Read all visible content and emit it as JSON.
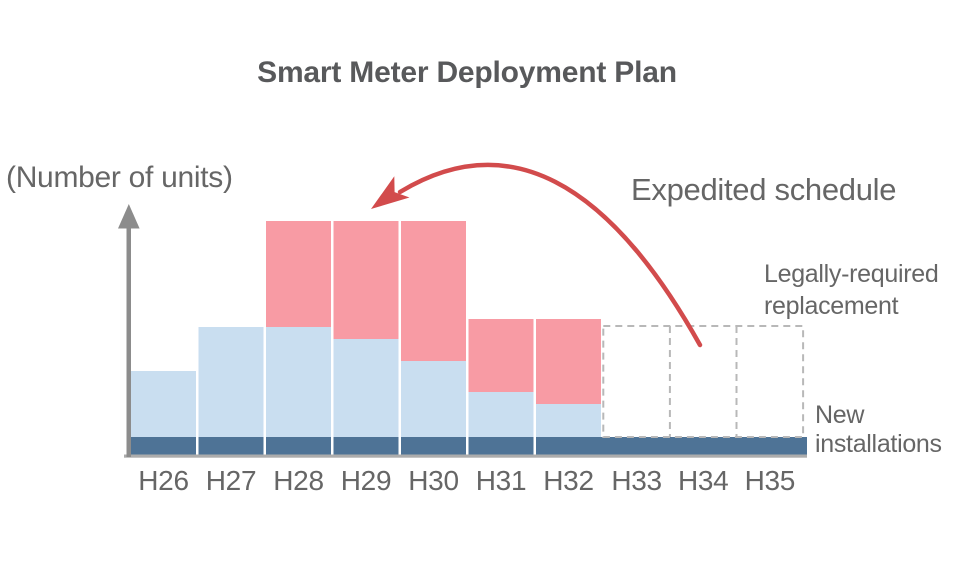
{
  "title": "Smart Meter Deployment Plan",
  "y_axis_label": "(Number of units)",
  "annotations": {
    "expedited_schedule": "Expedited schedule",
    "legally_required_line1": "Legally-required",
    "legally_required_line2": "replacement",
    "new_installations_line1": "New",
    "new_installations_line2": "installations"
  },
  "colors": {
    "pink_bar": "#F89BA4",
    "light_blue_bar": "#C9DEF0",
    "navy_band": "#4E7396",
    "arrow_red": "#D24B4C",
    "axis_gray": "#8C8C8C",
    "baseline_gray": "#ACACAC",
    "dashed_gray": "#B8B8B8",
    "text_gray": "#666666",
    "title_gray": "#58595B"
  },
  "chart_data": {
    "type": "bar",
    "stacked": true,
    "title": "Smart Meter Deployment Plan",
    "ylabel": "(Number of units)",
    "xlabel": "",
    "legend_position": "annotations on chart",
    "grid": false,
    "y_axis_ticks": "none shown (unscaled axis with arrow)",
    "value_units": "relative units estimated from bar heights (no numeric scale printed on chart)",
    "categories": [
      "H26",
      "H27",
      "H28",
      "H29",
      "H30",
      "H31",
      "H32",
      "H33",
      "H34",
      "H35"
    ],
    "series": [
      {
        "name": "unlabeled base deployment (light blue)",
        "role": "blue",
        "color": "#C9DEF0",
        "values": [
          66,
          110,
          110,
          98,
          76,
          45,
          33,
          0,
          0,
          0
        ]
      },
      {
        "name": "expedited replacement (pink, pulled forward per red arrow)",
        "role": "pink",
        "color": "#F89BA4",
        "values": [
          0,
          0,
          106,
          118,
          140,
          73,
          85,
          0,
          0,
          0
        ]
      },
      {
        "name": "Legally-required replacement (dashed outline placeholder)",
        "role": "dashed",
        "color": "#B8B8B8",
        "values": [
          0,
          0,
          0,
          0,
          0,
          0,
          0,
          111,
          111,
          111
        ]
      },
      {
        "name": "New installations (continuous navy band)",
        "role": "band",
        "color": "#4E7396",
        "values": [
          17,
          17,
          17,
          17,
          17,
          17,
          17,
          17,
          17,
          17
        ]
      }
    ]
  }
}
